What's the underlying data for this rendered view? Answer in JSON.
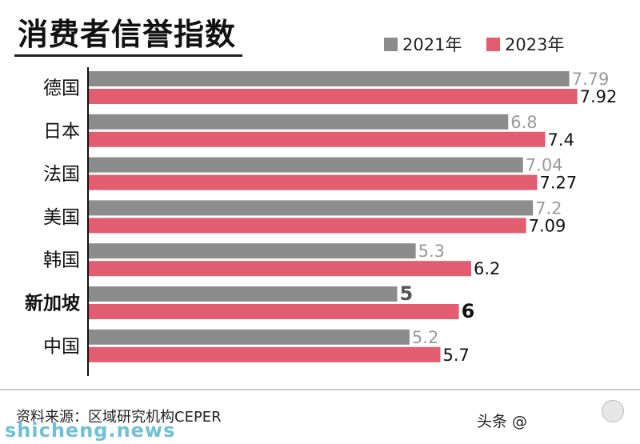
{
  "chart_data": {
    "type": "bar",
    "orientation": "horizontal",
    "title": "消费者信誉指数",
    "categories": [
      "德国",
      "日本",
      "法国",
      "美国",
      "韩国",
      "新加坡",
      "中国"
    ],
    "highlight_category": "新加坡",
    "series": [
      {
        "name": "2021年",
        "color": "#8c8c8c",
        "label_color": "#9a9a9a",
        "values": [
          7.79,
          6.8,
          7.04,
          7.2,
          5.3,
          5,
          5.2
        ]
      },
      {
        "name": "2023年",
        "color": "#e15d6f",
        "label_color": "#111111",
        "values": [
          7.92,
          7.4,
          7.27,
          7.09,
          6.2,
          6,
          5.7
        ]
      }
    ],
    "value_labels": [
      [
        "7.79",
        "6.8",
        "7.04",
        "7.2",
        "5.3",
        "5",
        "5.2"
      ],
      [
        "7.92",
        "7.4",
        "7.27",
        "7.09",
        "6.2",
        "6",
        "5.7"
      ]
    ],
    "xlim": [
      0,
      8
    ],
    "legend_position": "top-right",
    "grid": false,
    "source": "资料来源：区域研究机构CEPER"
  },
  "watermarks": {
    "toutiao": "头条 @",
    "site": "shicheng.news"
  }
}
